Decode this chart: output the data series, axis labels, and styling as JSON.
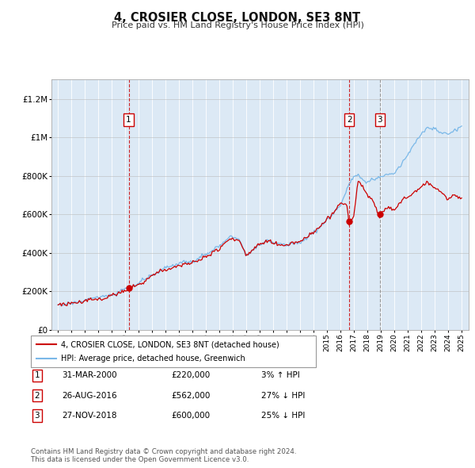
{
  "title": "4, CROSIER CLOSE, LONDON, SE3 8NT",
  "subtitle": "Price paid vs. HM Land Registry's House Price Index (HPI)",
  "background_color": "#dce9f5",
  "plot_bg_color": "#dce9f5",
  "hpi_color": "#7ab8e8",
  "price_color": "#cc0000",
  "ylim": [
    0,
    1300000
  ],
  "yticks": [
    0,
    200000,
    400000,
    600000,
    800000,
    1000000,
    1200000
  ],
  "ytick_labels": [
    "£0",
    "£200K",
    "£400K",
    "£600K",
    "£800K",
    "£1M",
    "£1.2M"
  ],
  "sales": [
    {
      "date_num": 2000.25,
      "price": 220000,
      "label": "1",
      "vline_style": "--",
      "vline_color": "#cc0000"
    },
    {
      "date_num": 2016.65,
      "price": 562000,
      "label": "2",
      "vline_style": "--",
      "vline_color": "#cc0000"
    },
    {
      "date_num": 2018.92,
      "price": 600000,
      "label": "3",
      "vline_style": "--",
      "vline_color": "#888888"
    }
  ],
  "legend_labels": [
    "4, CROSIER CLOSE, LONDON, SE3 8NT (detached house)",
    "HPI: Average price, detached house, Greenwich"
  ],
  "table_data": [
    [
      "1",
      "31-MAR-2000",
      "£220,000",
      "3% ↑ HPI"
    ],
    [
      "2",
      "26-AUG-2016",
      "£562,000",
      "27% ↓ HPI"
    ],
    [
      "3",
      "27-NOV-2018",
      "£600,000",
      "25% ↓ HPI"
    ]
  ],
  "footnote": "Contains HM Land Registry data © Crown copyright and database right 2024.\nThis data is licensed under the Open Government Licence v3.0.",
  "xmin": 1994.5,
  "xmax": 2025.5,
  "key_points_hpi": [
    [
      1995.0,
      130000
    ],
    [
      1996.0,
      140000
    ],
    [
      1997.0,
      155000
    ],
    [
      1998.0,
      165000
    ],
    [
      1999.0,
      180000
    ],
    [
      2000.25,
      213000
    ],
    [
      2001.0,
      235000
    ],
    [
      2002.0,
      280000
    ],
    [
      2003.0,
      320000
    ],
    [
      2004.0,
      350000
    ],
    [
      2005.0,
      360000
    ],
    [
      2006.0,
      390000
    ],
    [
      2007.0,
      430000
    ],
    [
      2007.8,
      480000
    ],
    [
      2008.5,
      460000
    ],
    [
      2009.0,
      390000
    ],
    [
      2009.5,
      420000
    ],
    [
      2010.0,
      440000
    ],
    [
      2010.5,
      460000
    ],
    [
      2011.0,
      450000
    ],
    [
      2011.5,
      445000
    ],
    [
      2012.0,
      440000
    ],
    [
      2012.5,
      450000
    ],
    [
      2013.0,
      460000
    ],
    [
      2013.5,
      480000
    ],
    [
      2014.0,
      510000
    ],
    [
      2014.5,
      540000
    ],
    [
      2015.0,
      580000
    ],
    [
      2015.5,
      620000
    ],
    [
      2016.0,
      660000
    ],
    [
      2016.65,
      770000
    ],
    [
      2017.0,
      810000
    ],
    [
      2017.3,
      820000
    ],
    [
      2017.6,
      790000
    ],
    [
      2018.0,
      790000
    ],
    [
      2018.5,
      800000
    ],
    [
      2018.92,
      800000
    ],
    [
      2019.0,
      800000
    ],
    [
      2019.5,
      830000
    ],
    [
      2020.0,
      820000
    ],
    [
      2020.5,
      870000
    ],
    [
      2021.0,
      920000
    ],
    [
      2021.5,
      970000
    ],
    [
      2022.0,
      1020000
    ],
    [
      2022.5,
      1060000
    ],
    [
      2023.0,
      1050000
    ],
    [
      2023.5,
      1020000
    ],
    [
      2024.0,
      1020000
    ],
    [
      2024.5,
      1040000
    ],
    [
      2025.0,
      1060000
    ]
  ],
  "key_points_red": [
    [
      1995.0,
      133000
    ],
    [
      1996.0,
      143000
    ],
    [
      1997.0,
      158000
    ],
    [
      1998.0,
      170000
    ],
    [
      1999.0,
      185000
    ],
    [
      2000.25,
      220000
    ],
    [
      2001.0,
      240000
    ],
    [
      2002.0,
      288000
    ],
    [
      2003.0,
      328000
    ],
    [
      2004.0,
      358000
    ],
    [
      2005.0,
      370000
    ],
    [
      2006.0,
      400000
    ],
    [
      2007.0,
      440000
    ],
    [
      2007.8,
      490000
    ],
    [
      2008.5,
      470000
    ],
    [
      2009.0,
      395000
    ],
    [
      2009.5,
      425000
    ],
    [
      2010.0,
      448000
    ],
    [
      2010.5,
      465000
    ],
    [
      2011.0,
      455000
    ],
    [
      2011.5,
      450000
    ],
    [
      2012.0,
      445000
    ],
    [
      2012.5,
      458000
    ],
    [
      2013.0,
      468000
    ],
    [
      2013.5,
      490000
    ],
    [
      2014.0,
      520000
    ],
    [
      2014.5,
      550000
    ],
    [
      2015.0,
      590000
    ],
    [
      2015.5,
      630000
    ],
    [
      2016.0,
      670000
    ],
    [
      2016.5,
      660000
    ],
    [
      2016.65,
      562000
    ],
    [
      2017.0,
      620000
    ],
    [
      2017.3,
      800000
    ],
    [
      2017.6,
      760000
    ],
    [
      2018.0,
      720000
    ],
    [
      2018.5,
      680000
    ],
    [
      2018.92,
      600000
    ],
    [
      2019.0,
      640000
    ],
    [
      2019.5,
      660000
    ],
    [
      2020.0,
      640000
    ],
    [
      2020.5,
      680000
    ],
    [
      2021.0,
      700000
    ],
    [
      2021.5,
      720000
    ],
    [
      2022.0,
      740000
    ],
    [
      2022.5,
      760000
    ],
    [
      2023.0,
      740000
    ],
    [
      2023.5,
      710000
    ],
    [
      2024.0,
      680000
    ],
    [
      2024.5,
      700000
    ],
    [
      2025.0,
      680000
    ]
  ]
}
